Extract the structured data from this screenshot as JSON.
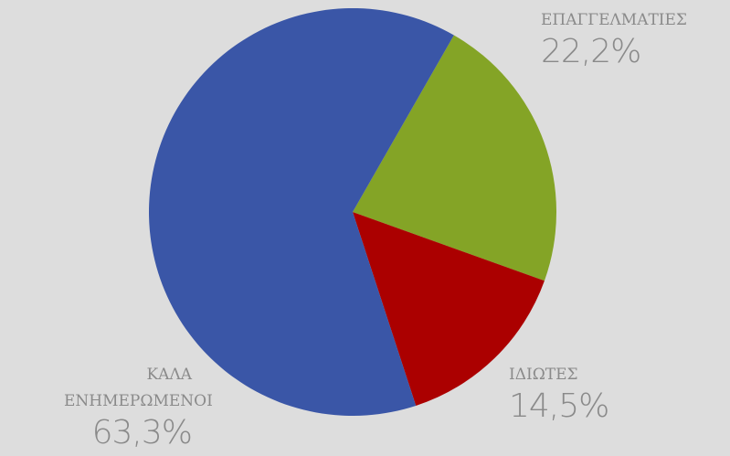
{
  "chart_data": {
    "type": "pie",
    "categories": [
      "ΕΠΑΓΓΕΛΜΑΤΙΕΣ",
      "ΙΔΙΩΤΕΣ",
      "ΚΑΛΑ ΕΝΗΜΕΡΩΜΕΝΟΙ"
    ],
    "values": [
      22.2,
      14.5,
      63.3
    ],
    "value_labels": [
      "22,2%",
      "14,5%",
      "63,3%"
    ],
    "colors": [
      "#84a426",
      "#ab0000",
      "#3a56a7"
    ]
  }
}
